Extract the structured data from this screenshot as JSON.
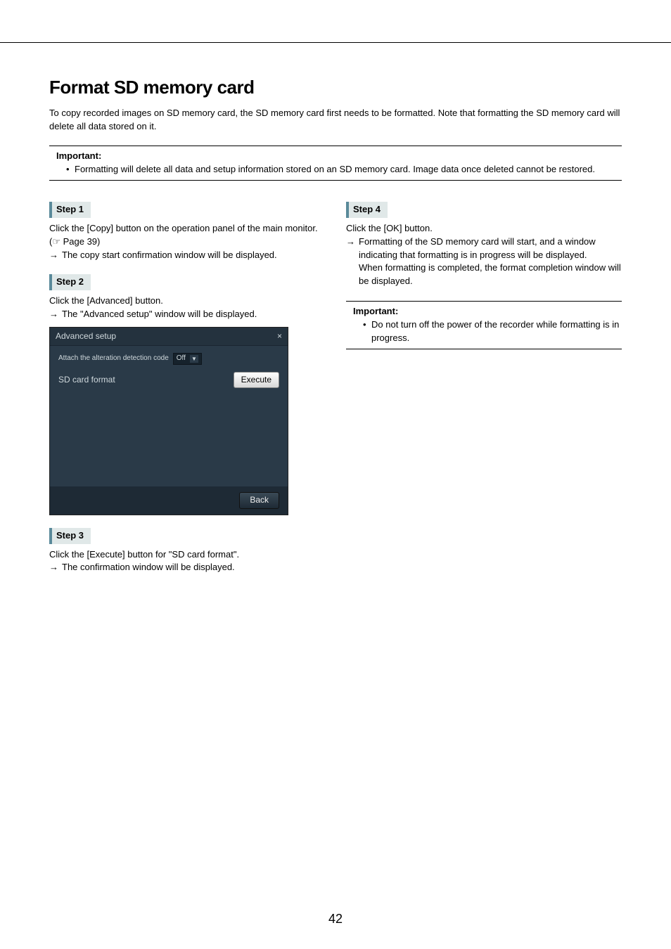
{
  "title": "Format SD memory card",
  "intro": "To copy recorded images on SD memory card, the SD memory card first needs to be formatted. Note that formatting the SD memory card will delete all data stored on it.",
  "important_top": {
    "label": "Important:",
    "bullet": "•",
    "text": "Formatting will delete all data and setup information stored on an SD memory card. Image data once deleted cannot be restored."
  },
  "left": {
    "step1": {
      "label": "Step 1",
      "text": "Click the [Copy] button on the operation panel of the main monitor. (☞ Page 39)",
      "arrow": "→",
      "result": "The copy start confirmation window will be displayed."
    },
    "step2": {
      "label": "Step 2",
      "text": "Click the [Advanced] button.",
      "arrow": "→",
      "result": "The \"Advanced setup\" window will be displayed."
    },
    "screenshot": {
      "title": "Advanced setup",
      "close": "×",
      "row1_label": "Attach the alteration detection code",
      "row1_value": "Off",
      "dd_arrow": "▼",
      "row2_label": "SD card format",
      "execute": "Execute",
      "back": "Back"
    },
    "step3": {
      "label": "Step 3",
      "text": "Click the [Execute] button for \"SD card format\".",
      "arrow": "→",
      "result": "The confirmation window will be displayed."
    }
  },
  "right": {
    "step4": {
      "label": "Step 4",
      "text": "Click the [OK] button.",
      "arrow": "→",
      "result": "Formatting of the SD memory card will start, and a window indicating that formatting is in progress will be displayed.",
      "result2": "When formatting is completed, the format completion window will be displayed."
    },
    "important": {
      "label": "Important:",
      "bullet": "•",
      "text": "Do not turn off the power of the recorder while formatting is in progress."
    }
  },
  "page_number": "42"
}
